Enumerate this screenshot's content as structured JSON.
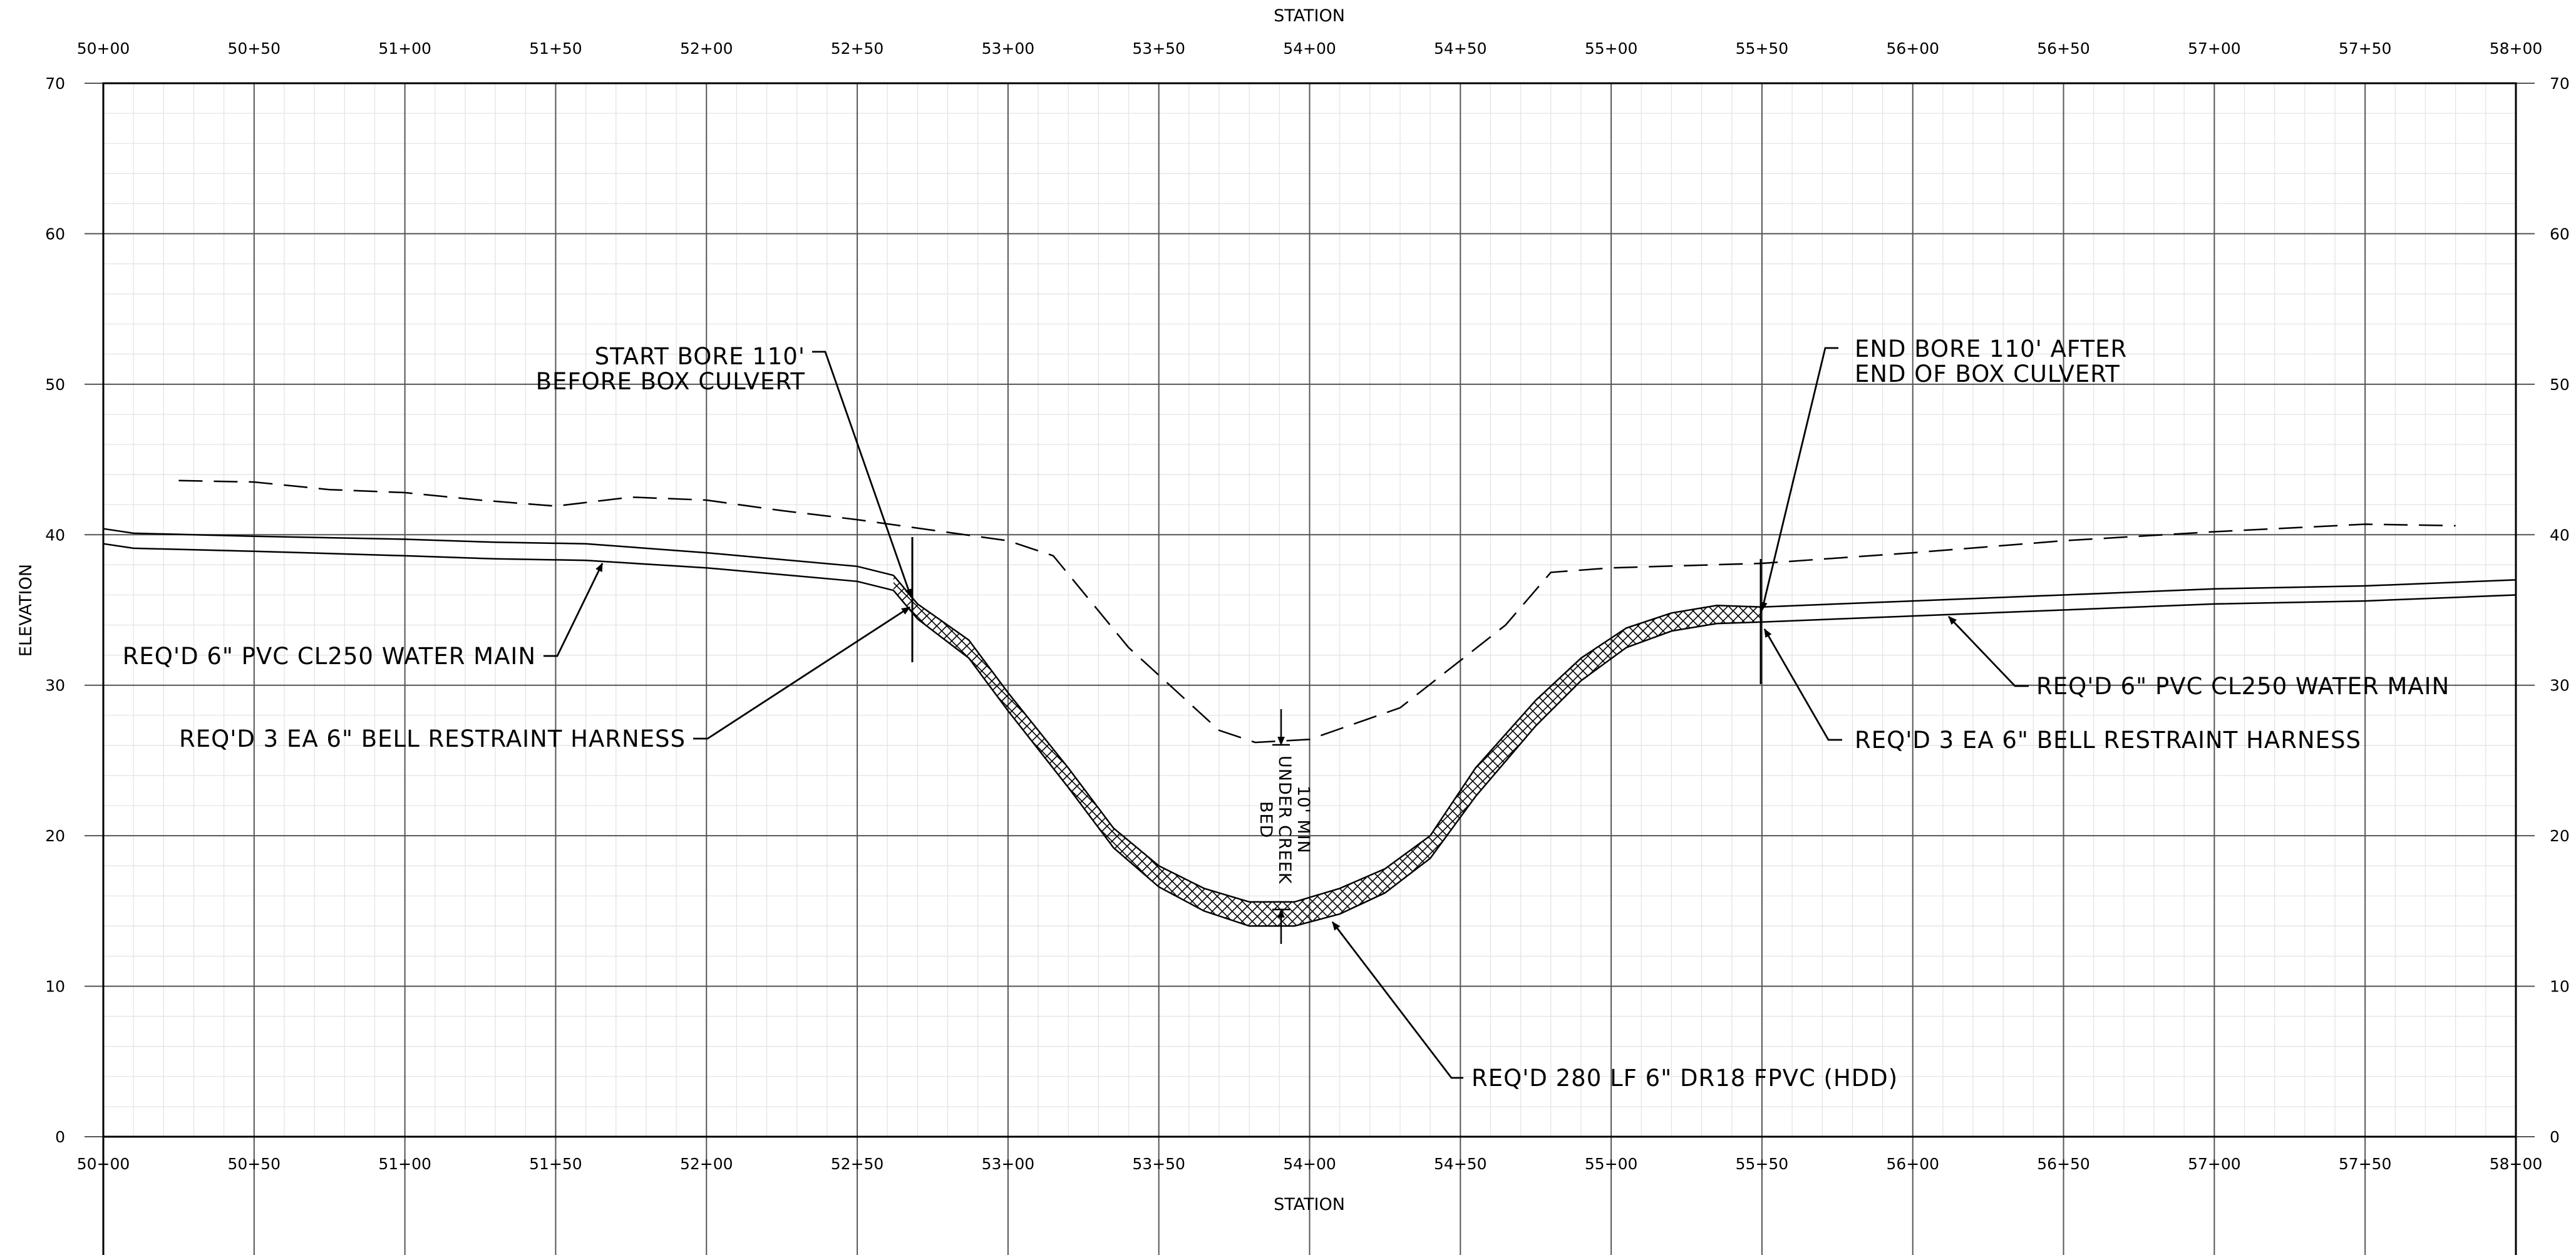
{
  "axes": {
    "x_title": "STATION",
    "y_title": "ELEVATION",
    "x_ticks": [
      "50+00",
      "50+50",
      "51+00",
      "51+50",
      "52+00",
      "52+50",
      "53+00",
      "53+50",
      "54+00",
      "54+50",
      "55+00",
      "55+50",
      "56+00",
      "56+50",
      "57+00",
      "57+50",
      "58+00"
    ],
    "y_ticks": [
      "0",
      "10",
      "20",
      "30",
      "40",
      "50",
      "60",
      "70"
    ]
  },
  "profile": {
    "existing_ground": [
      [
        5025,
        43.6
      ],
      [
        5050,
        43.5
      ],
      [
        5075,
        43.0
      ],
      [
        5100,
        42.8
      ],
      [
        5125,
        42.3
      ],
      [
        5150,
        41.9
      ],
      [
        5175,
        42.5
      ],
      [
        5200,
        42.3
      ],
      [
        5225,
        41.6
      ],
      [
        5250,
        41.0
      ],
      [
        5275,
        40.3
      ],
      [
        5300,
        39.6
      ],
      [
        5315,
        38.6
      ],
      [
        5340,
        32.5
      ],
      [
        5370,
        27.0
      ],
      [
        5382,
        26.2
      ],
      [
        5400,
        26.4
      ],
      [
        5430,
        28.5
      ],
      [
        5465,
        34.0
      ],
      [
        5480,
        37.5
      ],
      [
        5500,
        37.8
      ],
      [
        5550,
        38.1
      ],
      [
        5600,
        38.8
      ],
      [
        5650,
        39.6
      ],
      [
        5700,
        40.2
      ],
      [
        5750,
        40.7
      ],
      [
        5780,
        40.6
      ]
    ],
    "water_main_top_left": [
      [
        5000,
        40.4
      ],
      [
        5010,
        40.1
      ],
      [
        5050,
        39.9
      ],
      [
        5100,
        39.7
      ],
      [
        5130,
        39.5
      ],
      [
        5160,
        39.4
      ],
      [
        5200,
        38.8
      ],
      [
        5250,
        37.9
      ],
      [
        5262,
        37.3
      ]
    ],
    "water_main_bot_left": [
      [
        5000,
        39.4
      ],
      [
        5010,
        39.1
      ],
      [
        5050,
        38.9
      ],
      [
        5100,
        38.6
      ],
      [
        5130,
        38.4
      ],
      [
        5160,
        38.3
      ],
      [
        5200,
        37.8
      ],
      [
        5250,
        36.9
      ],
      [
        5262,
        36.3
      ]
    ],
    "water_main_top_right": [
      [
        5550,
        35.2
      ],
      [
        5600,
        35.6
      ],
      [
        5650,
        36.0
      ],
      [
        5700,
        36.4
      ],
      [
        5750,
        36.6
      ],
      [
        5800,
        37.0
      ]
    ],
    "water_main_bot_right": [
      [
        5550,
        34.2
      ],
      [
        5600,
        34.6
      ],
      [
        5650,
        35.0
      ],
      [
        5700,
        35.4
      ],
      [
        5750,
        35.6
      ],
      [
        5800,
        36.0
      ]
    ],
    "hdd_top": [
      [
        5262,
        37.3
      ],
      [
        5270,
        35.4
      ],
      [
        5287,
        33.0
      ],
      [
        5300,
        29.5
      ],
      [
        5320,
        24.5
      ],
      [
        5335,
        20.5
      ],
      [
        5350,
        18.0
      ],
      [
        5365,
        16.5
      ],
      [
        5380,
        15.6
      ],
      [
        5395,
        15.6
      ],
      [
        5410,
        16.5
      ],
      [
        5425,
        17.8
      ],
      [
        5440,
        20.0
      ],
      [
        5455,
        24.5
      ],
      [
        5475,
        29.0
      ],
      [
        5490,
        31.8
      ],
      [
        5505,
        33.8
      ],
      [
        5520,
        34.8
      ],
      [
        5535,
        35.3
      ],
      [
        5550,
        35.2
      ]
    ],
    "hdd_bottom": [
      [
        5262,
        36.3
      ],
      [
        5270,
        34.4
      ],
      [
        5287,
        31.8
      ],
      [
        5300,
        28.3
      ],
      [
        5320,
        23.2
      ],
      [
        5335,
        19.2
      ],
      [
        5350,
        16.6
      ],
      [
        5365,
        15.0
      ],
      [
        5380,
        14.0
      ],
      [
        5395,
        14.0
      ],
      [
        5410,
        14.8
      ],
      [
        5425,
        16.2
      ],
      [
        5440,
        18.5
      ],
      [
        5455,
        22.6
      ],
      [
        5475,
        27.3
      ],
      [
        5490,
        30.3
      ],
      [
        5505,
        32.5
      ],
      [
        5520,
        33.6
      ],
      [
        5535,
        34.1
      ],
      [
        5550,
        34.2
      ]
    ]
  },
  "callouts": {
    "start_bore_l1": "START BORE 110'",
    "start_bore_l2": "BEFORE BOX CULVERT",
    "end_bore_l1": "END BORE 110' AFTER",
    "end_bore_l2": "END OF BOX CULVERT",
    "water_main_left": "REQ'D 6\" PVC CL250 WATER MAIN",
    "water_main_right": "REQ'D 6\" PVC CL250 WATER MAIN",
    "harness_left": "REQ'D 3 EA 6\" BELL RESTRAINT HARNESS",
    "harness_right": "REQ'D 3 EA 6\" BELL RESTRAINT HARNESS",
    "hdd_pipe": "REQ'D 280 LF 6\" DR18 FPVC (HDD)",
    "cover_l1": "10' MIN",
    "cover_l2": "UNDER CREEK",
    "cover_l3": "BED"
  }
}
